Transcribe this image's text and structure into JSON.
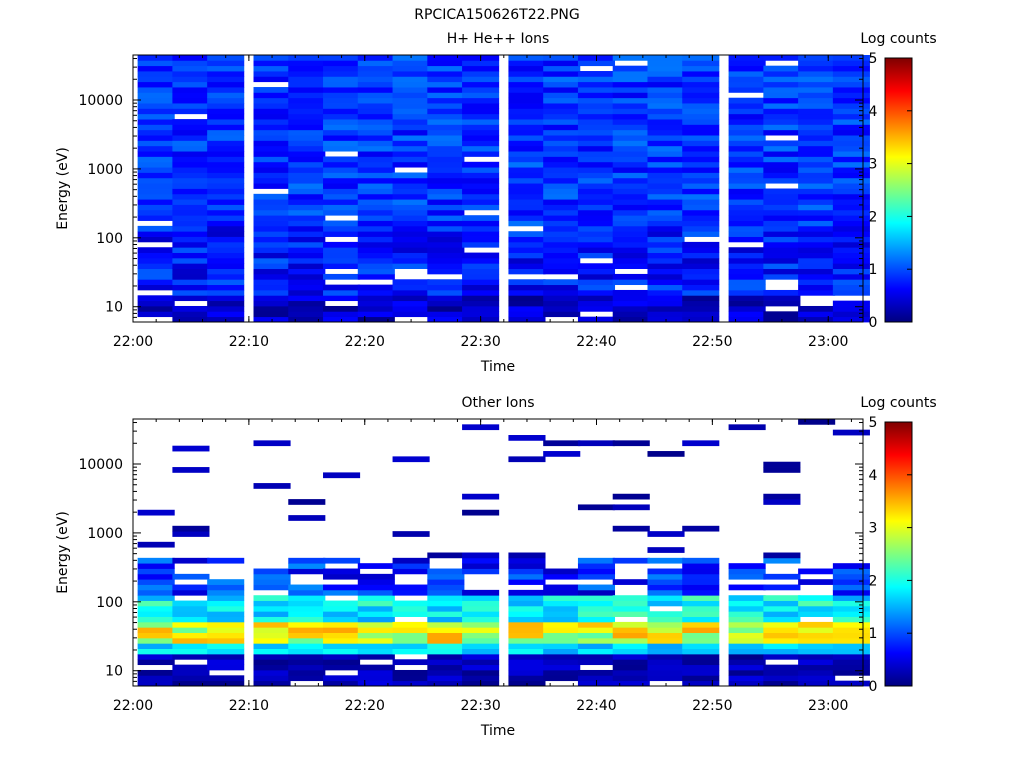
{
  "figure_title": "RPCICA150626T22.PNG",
  "colors": {
    "colormap": [
      "#00007f",
      "#0000ff",
      "#007fff",
      "#00ffff",
      "#7fff7f",
      "#ffff00",
      "#ff7f00",
      "#ff0000",
      "#7f0000"
    ],
    "background": "#ffffff",
    "axis": "#000000"
  },
  "chart_data": [
    {
      "type": "heatmap",
      "title": "H+ He++ Ions",
      "xlabel": "Time",
      "ylabel": "Energy (eV)",
      "colorbar_label": "Log counts",
      "y_scale": "log",
      "ylim": [
        6,
        45000
      ],
      "xlim": [
        "22:00",
        "23:03"
      ],
      "x_ticks": [
        "22:00",
        "22:10",
        "22:20",
        "22:30",
        "22:40",
        "22:50",
        "23:00"
      ],
      "y_ticks": [
        "10",
        "100",
        "1000",
        "10000"
      ],
      "colorbar_range": [
        0,
        5
      ],
      "colorbar_ticks": [
        "0",
        "1",
        "2",
        "3",
        "4",
        "5"
      ],
      "time_bins": [
        "22:02",
        "22:05",
        "22:08",
        "22:12",
        "22:15",
        "22:18",
        "22:21",
        "22:24",
        "22:27",
        "22:30",
        "22:34",
        "22:37",
        "22:40",
        "22:43",
        "22:46",
        "22:49",
        "22:53",
        "22:56",
        "22:59",
        "23:02"
      ],
      "energy_bins_approx": {
        "min": 6,
        "max": 45000,
        "count": 50
      },
      "value_range_observed": [
        0,
        1.5
      ],
      "description_values": "low log counts (~0.3-1.2) across all energies; gaps at ~10-100 eV"
    },
    {
      "type": "heatmap",
      "title": "Other Ions",
      "xlabel": "Time",
      "ylabel": "Energy (eV)",
      "colorbar_label": "Log counts",
      "y_scale": "log",
      "ylim": [
        6,
        45000
      ],
      "xlim": [
        "22:00",
        "23:03"
      ],
      "x_ticks": [
        "22:00",
        "22:10",
        "22:20",
        "22:30",
        "22:40",
        "22:50",
        "23:00"
      ],
      "y_ticks": [
        "10",
        "100",
        "1000",
        "10000"
      ],
      "colorbar_range": [
        0,
        5
      ],
      "colorbar_ticks": [
        "0",
        "1",
        "2",
        "3",
        "4",
        "5"
      ],
      "time_bins": [
        "22:02",
        "22:05",
        "22:08",
        "22:12",
        "22:15",
        "22:18",
        "22:21",
        "22:24",
        "22:27",
        "22:30",
        "22:34",
        "22:37",
        "22:40",
        "22:43",
        "22:46",
        "22:49",
        "22:53",
        "22:56",
        "22:59",
        "23:02"
      ],
      "energy_bins_approx": {
        "min": 6,
        "max": 45000,
        "count": 50
      },
      "value_range_observed": [
        0,
        3.6
      ],
      "peak_band_eV": [
        25,
        50
      ],
      "peak_log_counts": 3.6,
      "description_values": "band of 2.5-3.6 log counts at ~25-50 eV; sparse low counts above 1000 eV"
    }
  ]
}
